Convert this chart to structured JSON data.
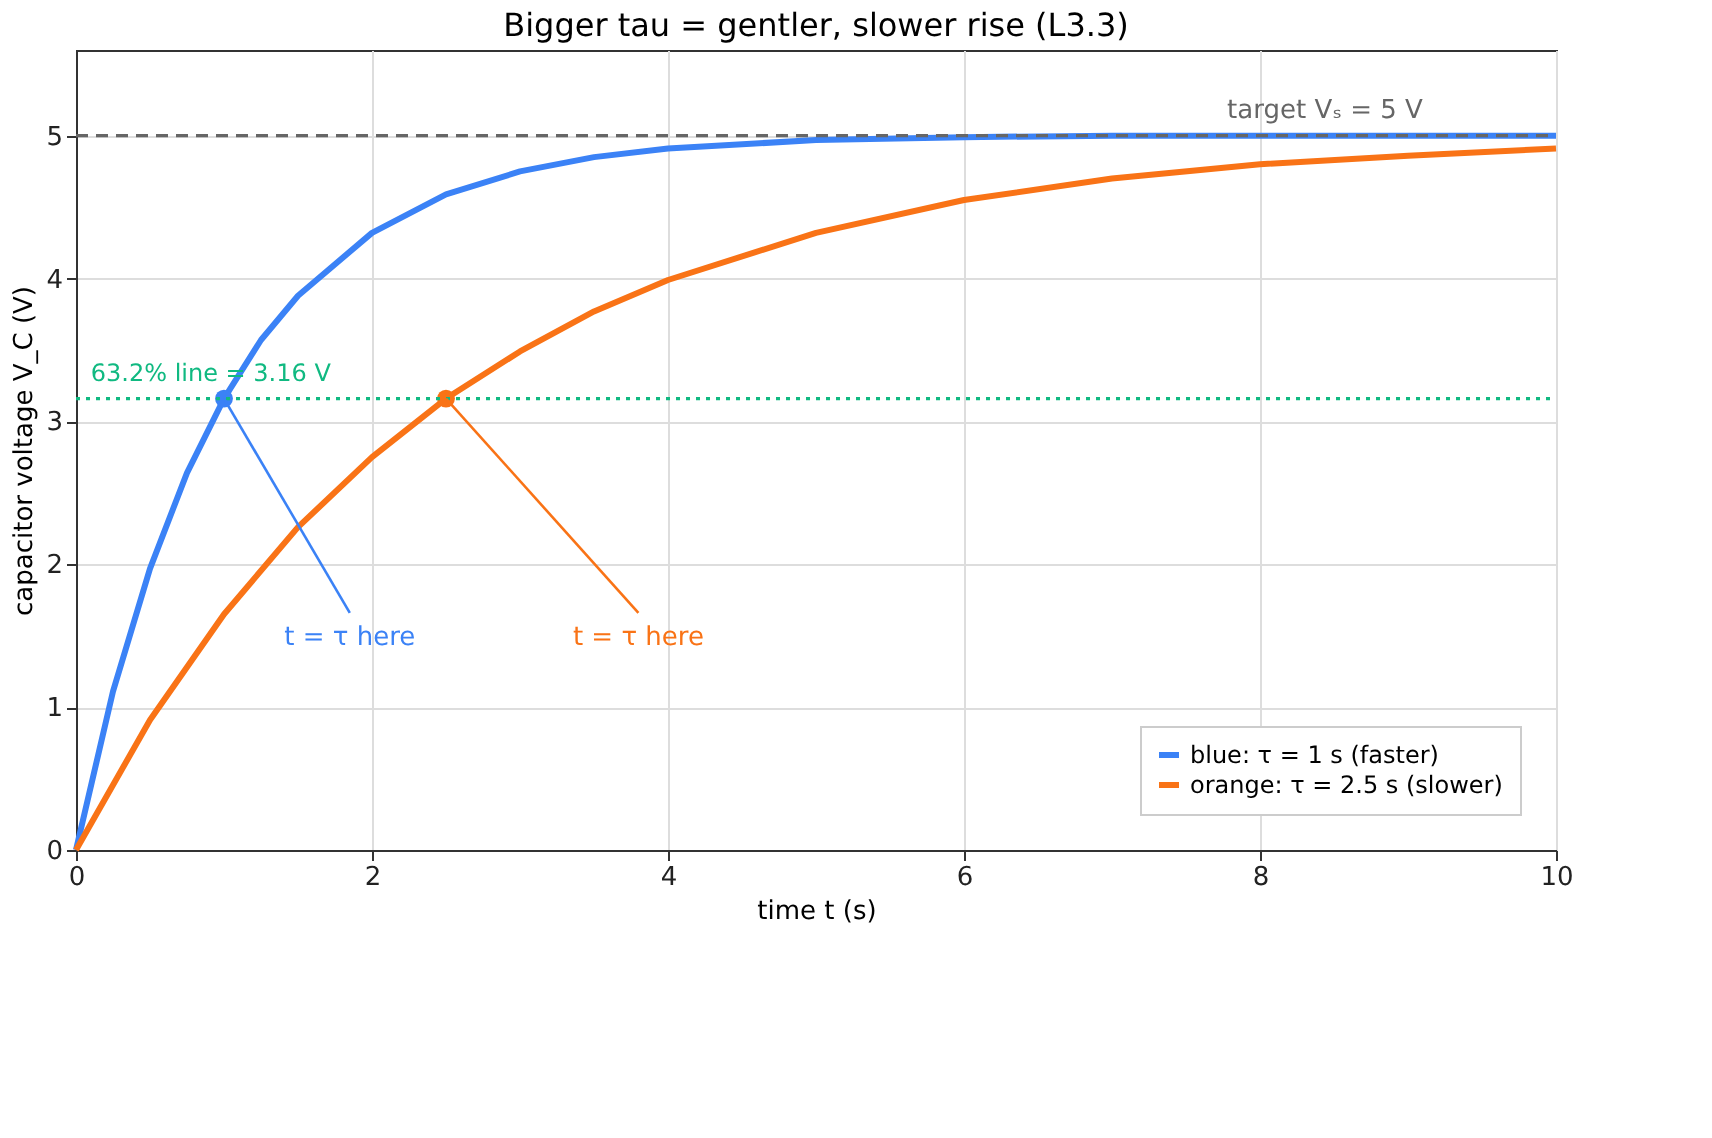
{
  "chart_data": {
    "type": "line",
    "title": "Bigger tau = gentler, slower rise (L3.3)",
    "xlabel": "time  t  (s)",
    "ylabel": "capacitor voltage  V_C  (V)",
    "xlim": [
      0,
      10
    ],
    "xticks": [
      0,
      2,
      4,
      6,
      8,
      10
    ],
    "ylim": [
      0,
      5.6
    ],
    "yticks": [
      0,
      1,
      2,
      3,
      4,
      5
    ],
    "grid": true,
    "legend": "bottom right",
    "marker": "none",
    "line_style": "solid",
    "series": [
      {
        "name": "blue: τ = 1 s (faster)",
        "color": "#3b82f6",
        "x": [
          0,
          0.25,
          0.5,
          0.75,
          1,
          1.25,
          1.5,
          2,
          2.5,
          3,
          3.5,
          4,
          5,
          6,
          7,
          8,
          9,
          10
        ],
        "values": [
          0,
          1.11,
          1.97,
          2.64,
          3.16,
          3.57,
          3.88,
          4.32,
          4.59,
          4.75,
          4.85,
          4.91,
          4.97,
          4.99,
          5.0,
          5.0,
          5.0,
          5.0
        ]
      },
      {
        "name": "orange: τ = 2.5 s (slower)",
        "color": "#f97316",
        "x": [
          0,
          0.5,
          1,
          1.5,
          2,
          2.5,
          3,
          3.5,
          4,
          5,
          6,
          7,
          8,
          9,
          10
        ],
        "values": [
          0,
          0.91,
          1.65,
          2.26,
          2.75,
          3.16,
          3.49,
          3.77,
          3.99,
          4.32,
          4.55,
          4.7,
          4.8,
          4.86,
          4.91
        ]
      },
      {
        "type": "scatter",
        "marker": "circle",
        "color": "#3b82f6",
        "x": [
          1
        ],
        "values": [
          3.16
        ]
      },
      {
        "type": "scatter",
        "marker": "circle",
        "color": "#f97316",
        "x": [
          2.5
        ],
        "values": [
          3.16
        ]
      }
    ],
    "ref_lines": [
      {
        "axis": "y",
        "value": 5,
        "label": "target Vₛ = 5 V",
        "color": "#666666",
        "line_style": "dashed"
      },
      {
        "axis": "y",
        "value": 3.16,
        "label": "63.2% line = 3.16 V",
        "color": "#10b981",
        "line_style": "dotted"
      }
    ],
    "annotations": [
      {
        "text": "t = τ here",
        "x": 1,
        "y": 3.16
      },
      {
        "text": "t = τ here",
        "x": 2.5,
        "y": 3.16
      }
    ]
  }
}
